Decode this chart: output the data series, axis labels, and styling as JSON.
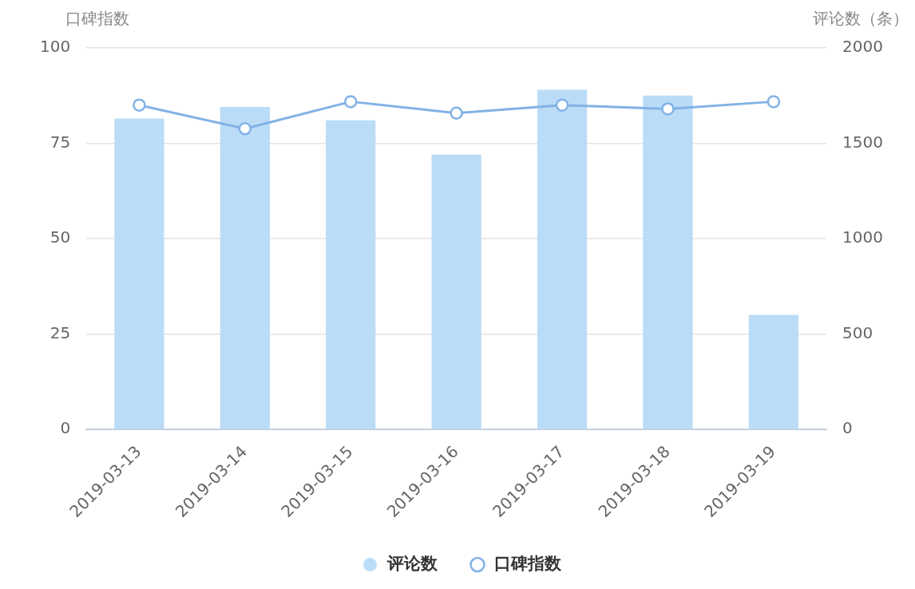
{
  "chart_data": {
    "type": "bar",
    "ylabel": "口碑指数",
    "y2label": "评论数（条）",
    "categories": [
      "2019-03-13",
      "2019-03-14",
      "2019-03-15",
      "2019-03-16",
      "2019-03-17",
      "2019-03-18",
      "2019-03-19"
    ],
    "series": [
      {
        "name": "评论数",
        "axis": "y2",
        "color": "#badcf7",
        "values": [
          1630,
          1690,
          1620,
          1440,
          1780,
          1750,
          600
        ]
      },
      {
        "name": "口碑指数",
        "type": "line",
        "color": "#82b2e6",
        "values": [
          85,
          78.8,
          85.9,
          82.9,
          85,
          84,
          85.9
        ]
      }
    ],
    "ylim": [
      0,
      100
    ],
    "yticks": [
      0,
      25,
      50,
      75,
      100
    ],
    "y2lim": [
      0,
      2000
    ],
    "y2ticks": [
      0,
      500,
      1000,
      1500,
      2000
    ],
    "grid": "y",
    "legend": "bottom",
    "marker": "circle",
    "line_style": "solid"
  }
}
